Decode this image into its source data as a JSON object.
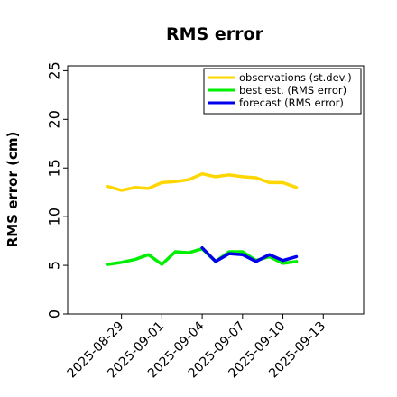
{
  "chart_data": {
    "type": "line",
    "title": "RMS error",
    "xlabel": "",
    "ylabel": "RMS error (cm)",
    "ylim": [
      0,
      25.5
    ],
    "yticks": [
      0,
      5,
      10,
      15,
      20,
      25
    ],
    "xlim": [
      "2025-08-25",
      "2025-09-16"
    ],
    "x_tick_dates": [
      "2025-08-29",
      "2025-09-01",
      "2025-09-04",
      "2025-09-07",
      "2025-09-10",
      "2025-09-13"
    ],
    "x_tick_labels": [
      "2025-08-29",
      "2025-09-01",
      "2025-09-04",
      "2025-09-07",
      "2025-09-10",
      "2025-09-13"
    ],
    "x_tick_colors": [
      "#000000",
      "#000000",
      "#228b22",
      "#000000",
      "#000000",
      "#000000"
    ],
    "grid": false,
    "legend_position": "top-right",
    "series": [
      {
        "name": "observations (st.dev.)",
        "color": "#ffd700",
        "x": [
          "2025-08-28",
          "2025-08-29",
          "2025-08-30",
          "2025-08-31",
          "2025-09-01",
          "2025-09-02",
          "2025-09-03",
          "2025-09-04",
          "2025-09-05",
          "2025-09-06",
          "2025-09-07",
          "2025-09-08",
          "2025-09-09",
          "2025-09-10",
          "2025-09-11"
        ],
        "values": [
          13.1,
          12.7,
          13.0,
          12.9,
          13.5,
          13.6,
          13.8,
          14.4,
          14.1,
          14.3,
          14.1,
          14.0,
          13.5,
          13.5,
          13.0
        ]
      },
      {
        "name": "best est. (RMS error)",
        "color": "#00ee00",
        "x": [
          "2025-08-28",
          "2025-08-29",
          "2025-08-30",
          "2025-08-31",
          "2025-09-01",
          "2025-09-02",
          "2025-09-03",
          "2025-09-04",
          "2025-09-05",
          "2025-09-06",
          "2025-09-07",
          "2025-09-08",
          "2025-09-09",
          "2025-09-10",
          "2025-09-11"
        ],
        "values": [
          5.1,
          5.3,
          5.6,
          6.1,
          5.1,
          6.4,
          6.3,
          6.7,
          5.4,
          6.4,
          6.4,
          5.5,
          5.9,
          5.2,
          5.4
        ]
      },
      {
        "name": "forecast (RMS error)",
        "color": "#0000ee",
        "x": [
          "2025-09-04",
          "2025-09-05",
          "2025-09-06",
          "2025-09-07",
          "2025-09-08",
          "2025-09-09",
          "2025-09-10",
          "2025-09-11"
        ],
        "values": [
          6.8,
          5.4,
          6.2,
          6.1,
          5.4,
          6.1,
          5.5,
          5.9
        ]
      }
    ]
  }
}
